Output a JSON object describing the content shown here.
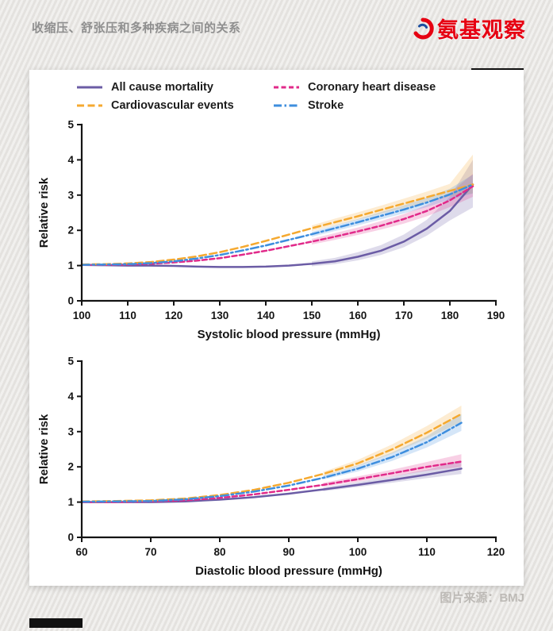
{
  "page": {
    "header_title": "收缩压、舒张压和多种疾病之间的关系",
    "brand_name": "氨基观察",
    "credit": "图片来源：BMJ"
  },
  "colors": {
    "brand_red": "#e60012",
    "header_gray": "#8f8f8f",
    "credit_gray": "#bdbab6",
    "card_bg": "#ffffff",
    "page_bg": "#eae8e5",
    "axis_black": "#141414"
  },
  "chart_data": [
    {
      "type": "line",
      "title": "",
      "xlabel": "Systolic blood pressure (mmHg)",
      "ylabel": "Relative risk",
      "xlim": [
        100,
        190
      ],
      "ylim": [
        0,
        5
      ],
      "xticks": [
        100,
        110,
        120,
        130,
        140,
        150,
        160,
        170,
        180,
        190
      ],
      "yticks": [
        0,
        1,
        2,
        3,
        4,
        5
      ],
      "grid": false,
      "legend_position": "top",
      "series": [
        {
          "name": "All cause mortality",
          "color": "#6b5ca5",
          "dash": "",
          "x": [
            100,
            105,
            110,
            115,
            120,
            125,
            130,
            135,
            140,
            145,
            150,
            155,
            160,
            165,
            170,
            175,
            180,
            185
          ],
          "y": [
            1.02,
            1.01,
            1.0,
            1.0,
            0.99,
            0.97,
            0.96,
            0.96,
            0.97,
            1.0,
            1.05,
            1.12,
            1.25,
            1.42,
            1.68,
            2.05,
            2.55,
            3.3
          ],
          "band": {
            "x": [
              150,
              155,
              160,
              165,
              170,
              175,
              180,
              185
            ],
            "lower": [
              0.98,
              1.04,
              1.15,
              1.3,
              1.52,
              1.85,
              2.28,
              2.65
            ],
            "upper": [
              1.12,
              1.22,
              1.38,
              1.58,
              1.88,
              2.3,
              2.95,
              4.0
            ]
          }
        },
        {
          "name": "Coronary heart disease",
          "color": "#e12a8a",
          "dash": "6,3.5",
          "x": [
            100,
            105,
            110,
            115,
            120,
            125,
            130,
            135,
            140,
            145,
            150,
            155,
            160,
            165,
            170,
            175,
            180,
            185
          ],
          "y": [
            1.02,
            1.02,
            1.03,
            1.05,
            1.09,
            1.14,
            1.21,
            1.31,
            1.42,
            1.55,
            1.68,
            1.82,
            1.97,
            2.13,
            2.32,
            2.55,
            2.85,
            3.25
          ],
          "band": {
            "x": [
              150,
              155,
              160,
              165,
              170,
              175,
              180,
              185
            ],
            "lower": [
              1.6,
              1.73,
              1.87,
              2.02,
              2.19,
              2.4,
              2.66,
              2.95
            ],
            "upper": [
              1.76,
              1.92,
              2.08,
              2.26,
              2.46,
              2.72,
              3.06,
              3.6
            ]
          }
        },
        {
          "name": "Cardiovascular events",
          "color": "#f5a930",
          "dash": "9,4.5",
          "x": [
            100,
            105,
            110,
            115,
            120,
            125,
            130,
            135,
            140,
            145,
            150,
            155,
            160,
            165,
            170,
            175,
            180,
            185
          ],
          "y": [
            1.03,
            1.04,
            1.06,
            1.1,
            1.17,
            1.26,
            1.38,
            1.53,
            1.7,
            1.88,
            2.06,
            2.23,
            2.4,
            2.58,
            2.76,
            2.94,
            3.12,
            3.3
          ],
          "band": {
            "x": [
              150,
              155,
              160,
              165,
              170,
              175,
              180,
              185
            ],
            "lower": [
              1.98,
              2.14,
              2.3,
              2.47,
              2.63,
              2.8,
              2.96,
              3.05
            ],
            "upper": [
              2.14,
              2.33,
              2.51,
              2.7,
              2.9,
              3.1,
              3.32,
              4.15
            ]
          }
        },
        {
          "name": "Stroke",
          "color": "#3e8ede",
          "dash": "10,3.5,2.5,3.5",
          "x": [
            100,
            105,
            110,
            115,
            120,
            125,
            130,
            135,
            140,
            145,
            150,
            155,
            160,
            165,
            170,
            175,
            180,
            185
          ],
          "y": [
            1.02,
            1.03,
            1.04,
            1.07,
            1.12,
            1.2,
            1.3,
            1.43,
            1.57,
            1.73,
            1.89,
            2.06,
            2.23,
            2.41,
            2.59,
            2.79,
            3.02,
            3.3
          ],
          "band": {
            "x": [
              150,
              155,
              160,
              165,
              170,
              175,
              180,
              185
            ],
            "lower": [
              1.82,
              1.98,
              2.14,
              2.31,
              2.48,
              2.66,
              2.87,
              3.05
            ],
            "upper": [
              1.96,
              2.14,
              2.32,
              2.52,
              2.71,
              2.93,
              3.18,
              3.58
            ]
          }
        }
      ]
    },
    {
      "type": "line",
      "title": "",
      "xlabel": "Diastolic blood pressure (mmHg)",
      "ylabel": "Relative risk",
      "xlim": [
        60,
        120
      ],
      "ylim": [
        0,
        5
      ],
      "xticks": [
        60,
        70,
        80,
        90,
        100,
        110,
        120
      ],
      "yticks": [
        0,
        1,
        2,
        3,
        4,
        5
      ],
      "grid": false,
      "legend_position": "none",
      "series": [
        {
          "name": "All cause mortality",
          "color": "#6b5ca5",
          "dash": "",
          "x": [
            60,
            65,
            70,
            75,
            80,
            85,
            90,
            95,
            100,
            105,
            110,
            115
          ],
          "y": [
            1.0,
            1.0,
            1.0,
            1.02,
            1.07,
            1.14,
            1.24,
            1.36,
            1.49,
            1.63,
            1.78,
            1.95
          ],
          "band": {
            "x": [
              95,
              100,
              105,
              110,
              115
            ],
            "lower": [
              1.31,
              1.43,
              1.55,
              1.68,
              1.8
            ],
            "upper": [
              1.42,
              1.57,
              1.73,
              1.92,
              2.18
            ]
          }
        },
        {
          "name": "Coronary heart disease",
          "color": "#e12a8a",
          "dash": "6,3.5",
          "x": [
            60,
            65,
            70,
            75,
            80,
            85,
            90,
            95,
            100,
            105,
            110,
            115
          ],
          "y": [
            1.0,
            1.0,
            1.02,
            1.05,
            1.12,
            1.22,
            1.35,
            1.49,
            1.65,
            1.82,
            2.0,
            2.15
          ],
          "band": {
            "x": [
              95,
              100,
              105,
              110,
              115
            ],
            "lower": [
              1.44,
              1.58,
              1.73,
              1.89,
              2.0
            ],
            "upper": [
              1.55,
              1.73,
              1.92,
              2.14,
              2.36
            ]
          }
        },
        {
          "name": "Cardiovascular events",
          "color": "#f5a930",
          "dash": "9,4.5",
          "x": [
            60,
            65,
            70,
            75,
            80,
            85,
            90,
            95,
            100,
            105,
            110,
            115
          ],
          "y": [
            1.02,
            1.03,
            1.05,
            1.1,
            1.2,
            1.35,
            1.55,
            1.8,
            2.1,
            2.5,
            2.97,
            3.5
          ],
          "band": {
            "x": [
              95,
              100,
              105,
              110,
              115
            ],
            "lower": [
              1.74,
              2.02,
              2.38,
              2.8,
              3.28
            ],
            "upper": [
              1.86,
              2.2,
              2.64,
              3.16,
              3.74
            ]
          }
        },
        {
          "name": "Stroke",
          "color": "#3e8ede",
          "dash": "10,3.5,2.5,3.5",
          "x": [
            60,
            65,
            70,
            75,
            80,
            85,
            90,
            95,
            100,
            105,
            110,
            115
          ],
          "y": [
            1.01,
            1.02,
            1.03,
            1.08,
            1.17,
            1.3,
            1.47,
            1.69,
            1.95,
            2.28,
            2.7,
            3.25
          ],
          "band": {
            "x": [
              95,
              100,
              105,
              110,
              115
            ],
            "lower": [
              1.64,
              1.87,
              2.17,
              2.55,
              3.02
            ],
            "upper": [
              1.75,
              2.04,
              2.41,
              2.87,
              3.5
            ]
          }
        }
      ]
    }
  ]
}
